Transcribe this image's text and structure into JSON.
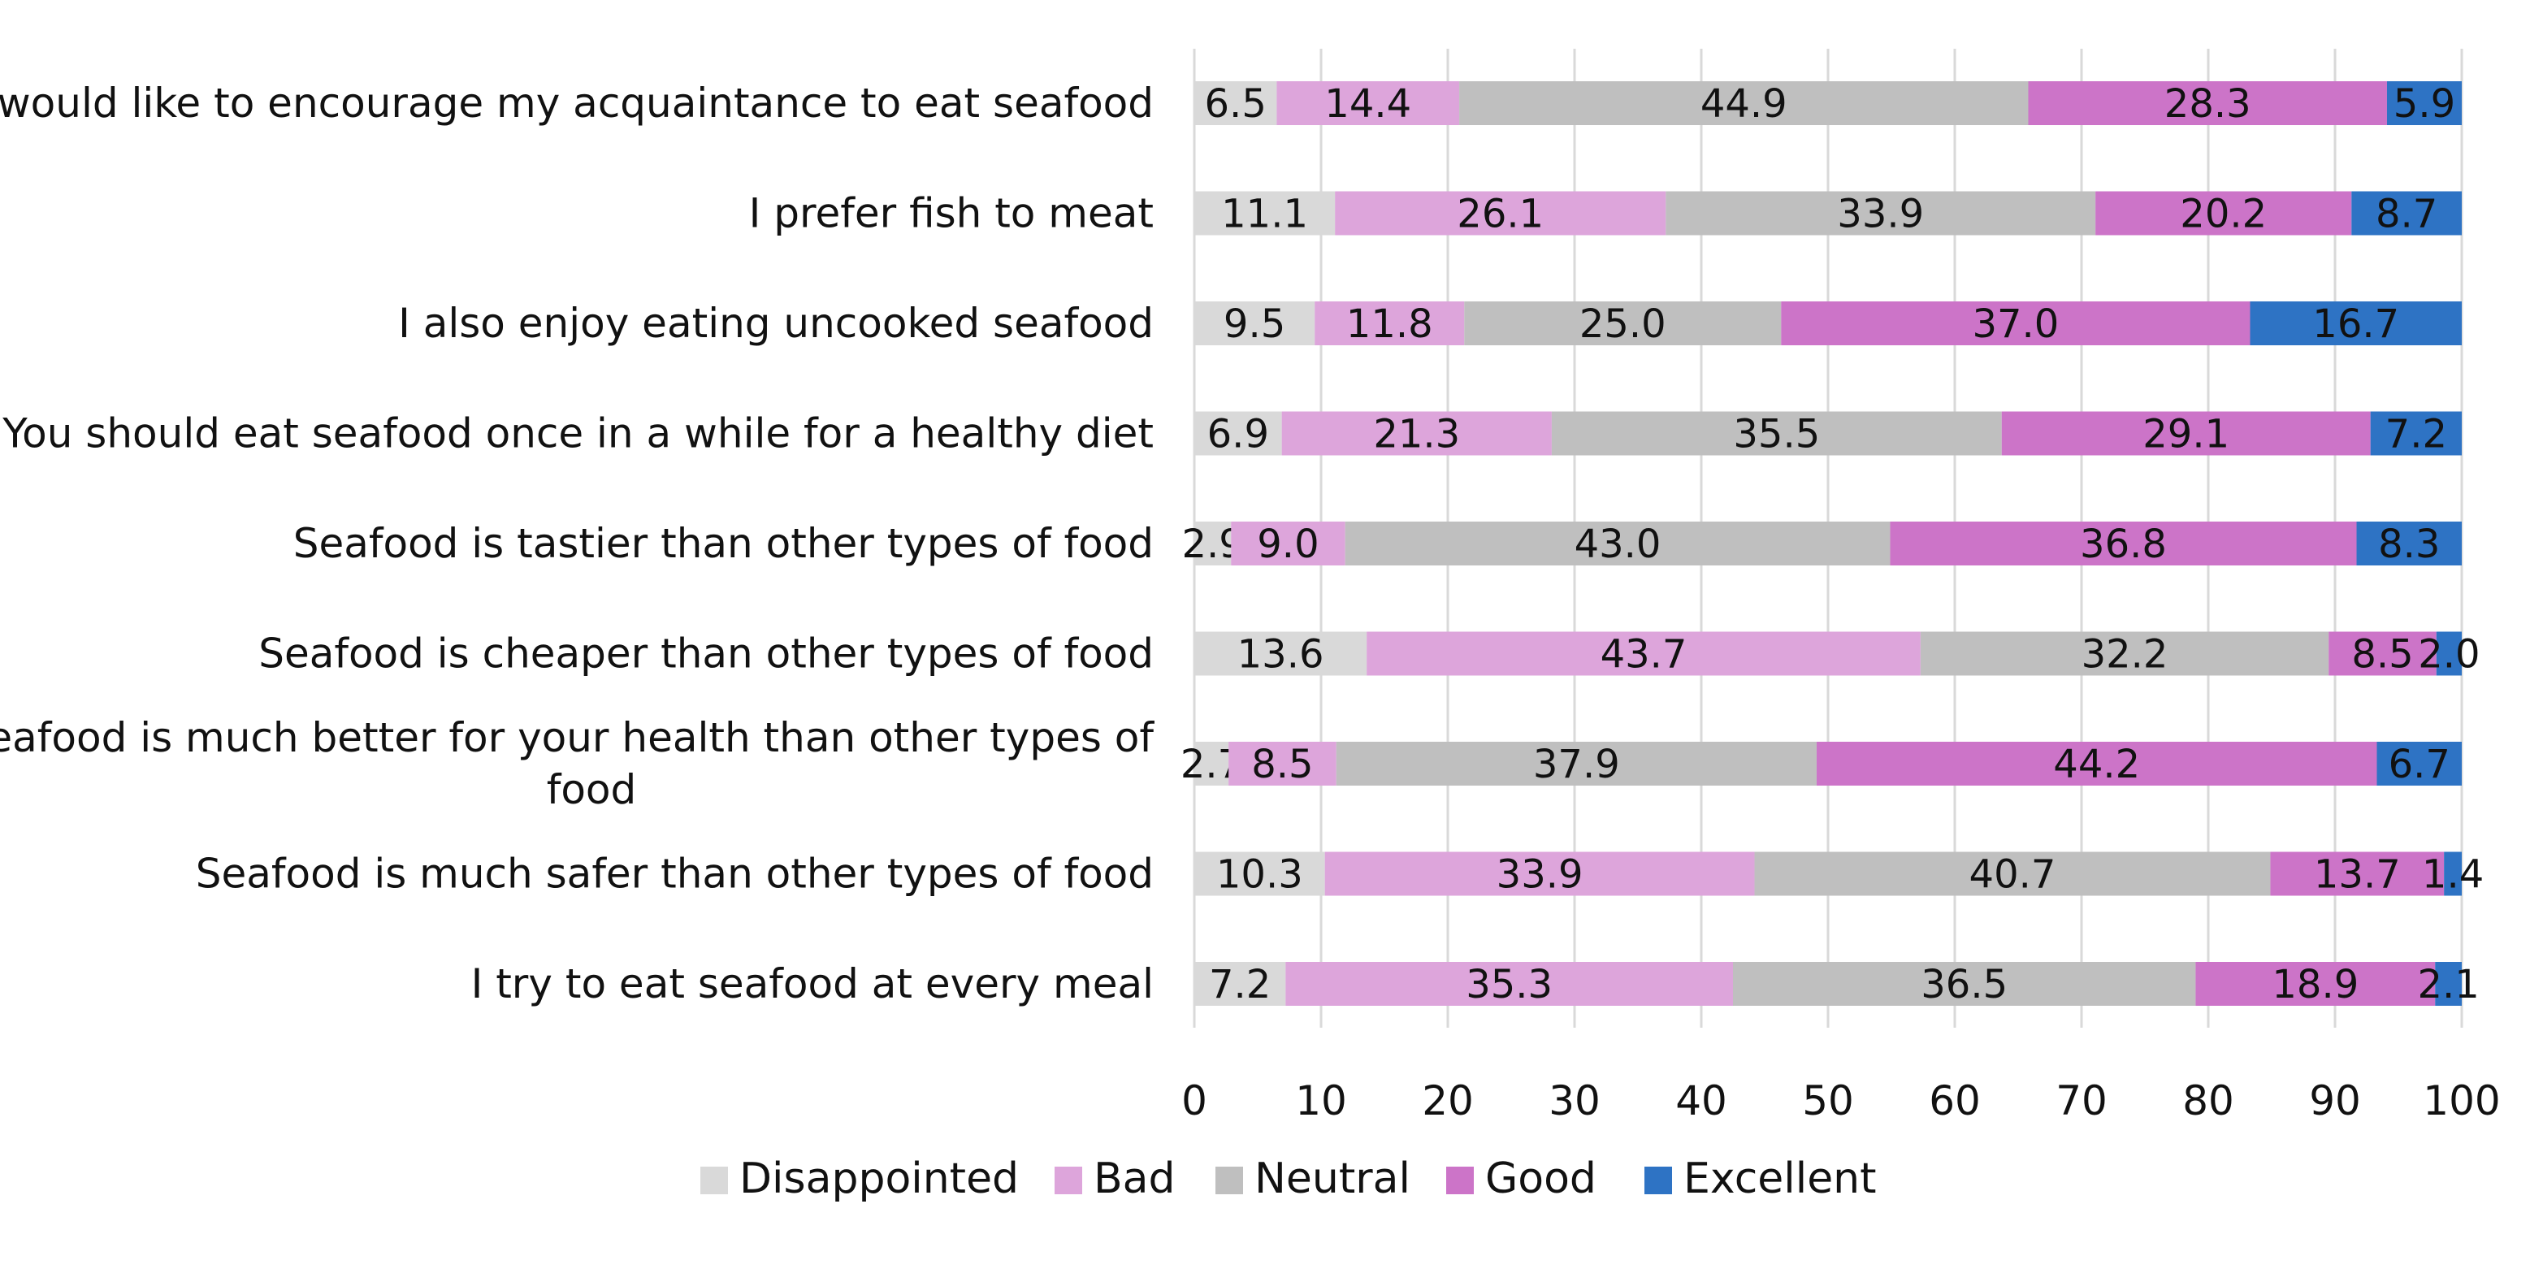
{
  "chart_data": {
    "type": "bar",
    "orientation": "horizontal",
    "stacked": true,
    "categories": [
      "I would like to encourage my acquaintance to eat seafood",
      "I prefer fish to meat",
      "I also enjoy eating uncooked seafood",
      "You should eat seafood once in a while for a healthy diet",
      "Seafood is tastier than other types of food",
      "Seafood is cheaper than other types of food",
      "Seafood is much better for your health than other types of food",
      "Seafood is much safer than other types of food",
      "I try to eat seafood at every meal"
    ],
    "series": [
      {
        "name": "Disappointed",
        "color": "#d9d9d9",
        "values": [
          6.5,
          11.1,
          9.5,
          6.9,
          2.9,
          13.6,
          2.7,
          10.3,
          7.2
        ]
      },
      {
        "name": "Bad",
        "color": "#dda5db",
        "values": [
          14.4,
          26.1,
          11.8,
          21.3,
          9.0,
          43.7,
          8.5,
          33.9,
          35.3
        ]
      },
      {
        "name": "Neutral",
        "color": "#bfbfbf",
        "values": [
          44.9,
          33.9,
          25.0,
          35.5,
          43.0,
          32.2,
          37.9,
          40.7,
          36.5
        ]
      },
      {
        "name": "Good",
        "color": "#cc74c8",
        "values": [
          28.3,
          20.2,
          37.0,
          29.1,
          36.8,
          8.5,
          44.2,
          13.7,
          18.9
        ]
      },
      {
        "name": "Excellent",
        "color": "#2e73c4",
        "values": [
          5.9,
          8.7,
          16.7,
          7.2,
          8.3,
          2.0,
          6.7,
          1.4,
          2.1
        ]
      }
    ],
    "xlim": [
      0,
      100
    ],
    "x_ticks": [
      "0",
      "10",
      "20",
      "30",
      "40",
      "50",
      "60",
      "70",
      "80",
      "90",
      "100"
    ],
    "grid": true,
    "legend_position": "bottom",
    "data_labels": true
  }
}
